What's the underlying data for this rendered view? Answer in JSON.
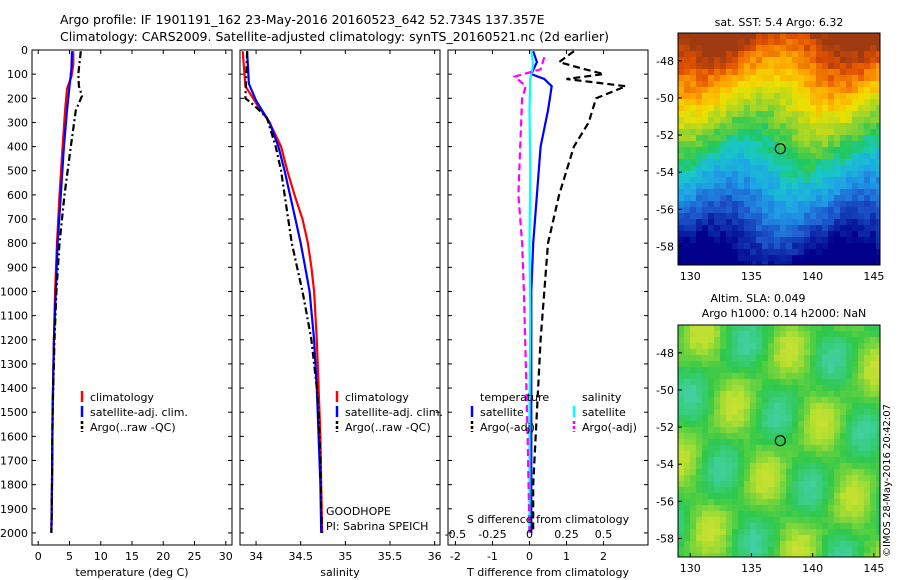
{
  "title_line1": "Argo profile: IF 1901191_162 23-May-2016 20160523_642 52.734S 137.357E",
  "title_line2": "Climatology: CARS2009. Satellite-adjusted climatology: synTS_20160521.nc (2d earlier)",
  "credit": "GOODHOPE",
  "pi": "PI: Sabrina SPEICH",
  "imos_stamp": "©IMOS 28-May-2016 20:42:07",
  "colors": {
    "climatology": "#ff0000",
    "satellite": "#0000ff",
    "argo": "#000000",
    "s_sat": "#00ffff",
    "s_argo": "#ff00ff"
  },
  "chart_data": [
    {
      "type": "line",
      "id": "temperature",
      "xlabel": "temperature (deg C)",
      "ylabel": "",
      "xlim": [
        -1,
        31
      ],
      "ylim": [
        2050,
        0
      ],
      "y_reversed": true,
      "xticks": [
        0,
        5,
        10,
        15,
        20,
        25,
        30
      ],
      "yticks": [
        0,
        100,
        200,
        300,
        400,
        500,
        600,
        700,
        800,
        900,
        1000,
        1100,
        1200,
        1300,
        1400,
        1500,
        1600,
        1700,
        1800,
        1900,
        2000
      ],
      "legend": [
        "climatology",
        "satellite-adj. clim.",
        "Argo(..raw -QC)"
      ],
      "series": [
        {
          "name": "climatology",
          "style": "solid",
          "color": "#ff0000",
          "points": [
            [
              5.6,
              5
            ],
            [
              5.6,
              60
            ],
            [
              5.3,
              110
            ],
            [
              4.6,
              160
            ],
            [
              4.3,
              250
            ],
            [
              3.9,
              400
            ],
            [
              3.4,
              600
            ],
            [
              3.0,
              800
            ],
            [
              2.7,
              1000
            ],
            [
              2.5,
              1200
            ],
            [
              2.3,
              1500
            ],
            [
              2.2,
              1800
            ],
            [
              2.1,
              2000
            ]
          ]
        },
        {
          "name": "satellite-adj. clim.",
          "style": "solid",
          "color": "#0000ff",
          "points": [
            [
              5.4,
              5
            ],
            [
              5.3,
              80
            ],
            [
              5.0,
              150
            ],
            [
              4.6,
              250
            ],
            [
              4.1,
              400
            ],
            [
              3.6,
              600
            ],
            [
              3.1,
              800
            ],
            [
              2.8,
              1000
            ],
            [
              2.5,
              1200
            ],
            [
              2.3,
              1500
            ],
            [
              2.2,
              1800
            ],
            [
              2.1,
              2000
            ]
          ]
        },
        {
          "name": "Argo(..raw -QC)",
          "style": "dashdot",
          "color": "#000000",
          "points": [
            [
              6.8,
              5
            ],
            [
              6.4,
              100
            ],
            [
              6.5,
              150
            ],
            [
              7.0,
              190
            ],
            [
              6.0,
              250
            ],
            [
              5.2,
              400
            ],
            [
              4.2,
              600
            ],
            [
              3.4,
              800
            ],
            [
              2.9,
              1000
            ],
            [
              2.6,
              1200
            ],
            [
              2.3,
              1500
            ],
            [
              2.2,
              1800
            ],
            [
              2.1,
              2000
            ]
          ]
        }
      ]
    },
    {
      "type": "line",
      "id": "salinity",
      "xlabel": "salinity",
      "ylabel": "",
      "xlim": [
        33.82,
        36.06
      ],
      "ylim": [
        2050,
        0
      ],
      "y_reversed": true,
      "xticks": [
        34,
        34.5,
        35,
        35.5,
        36
      ],
      "legend": [
        "climatology",
        "satellite-adj. clim.",
        "Argo(..raw -QC)"
      ],
      "series": [
        {
          "name": "climatology",
          "style": "solid",
          "color": "#ff0000",
          "points": [
            [
              33.85,
              5
            ],
            [
              33.88,
              150
            ],
            [
              34.0,
              220
            ],
            [
              34.15,
              300
            ],
            [
              34.28,
              400
            ],
            [
              34.35,
              500
            ],
            [
              34.43,
              600
            ],
            [
              34.52,
              700
            ],
            [
              34.58,
              800
            ],
            [
              34.62,
              900
            ],
            [
              34.65,
              1000
            ],
            [
              34.68,
              1200
            ],
            [
              34.7,
              1400
            ],
            [
              34.72,
              1600
            ],
            [
              34.73,
              1800
            ],
            [
              34.74,
              2000
            ]
          ]
        },
        {
          "name": "satellite-adj. clim.",
          "style": "solid",
          "color": "#0000ff",
          "points": [
            [
              33.9,
              5
            ],
            [
              33.92,
              140
            ],
            [
              34.0,
              210
            ],
            [
              34.15,
              300
            ],
            [
              34.25,
              400
            ],
            [
              34.32,
              500
            ],
            [
              34.38,
              600
            ],
            [
              34.44,
              700
            ],
            [
              34.5,
              800
            ],
            [
              34.55,
              900
            ],
            [
              34.6,
              1000
            ],
            [
              34.65,
              1200
            ],
            [
              34.68,
              1400
            ],
            [
              34.7,
              1600
            ],
            [
              34.72,
              1800
            ],
            [
              34.73,
              2000
            ]
          ]
        },
        {
          "name": "Argo(..raw -QC)",
          "style": "dashdot",
          "color": "#000000",
          "points": [
            [
              33.9,
              5
            ],
            [
              33.88,
              200
            ],
            [
              33.98,
              230
            ],
            [
              34.12,
              280
            ],
            [
              34.22,
              400
            ],
            [
              34.28,
              500
            ],
            [
              34.32,
              600
            ],
            [
              34.36,
              700
            ],
            [
              34.4,
              800
            ],
            [
              34.46,
              900
            ],
            [
              34.52,
              1000
            ],
            [
              34.57,
              1100
            ],
            [
              34.62,
              1200
            ],
            [
              34.65,
              1300
            ],
            [
              34.68,
              1400
            ],
            [
              34.7,
              1500
            ],
            [
              34.72,
              1700
            ],
            [
              34.73,
              1900
            ],
            [
              34.74,
              2000
            ]
          ]
        }
      ]
    },
    {
      "type": "line",
      "id": "difference",
      "xlabel": "T difference from climatology",
      "xlabel_top": "S difference from climatology",
      "xlim": [
        -2.2,
        3.2
      ],
      "ylim": [
        2050,
        0
      ],
      "y_reversed": true,
      "xticks": [
        -2,
        -1,
        0,
        1,
        2
      ],
      "top_ticks": [
        "-0.5",
        "-0.25",
        "0",
        "0.25",
        "0.5"
      ],
      "top_tick_values": [
        -0.5,
        -0.25,
        0,
        0.25,
        0.5
      ],
      "legend_title_t": "temperature",
      "legend_title_s": "salinity",
      "legend": [
        {
          "label": "satellite",
          "color": "#0000ff",
          "style": "solid"
        },
        {
          "label": "Argo(-adj)",
          "color": "#000000",
          "style": "dash"
        },
        {
          "label": "satellite",
          "color": "#00ffff",
          "style": "solid"
        },
        {
          "label": "Argo(-adj)",
          "color": "#ff00ff",
          "style": "dash"
        }
      ],
      "series": [
        {
          "name": "T satellite",
          "style": "solid",
          "color": "#0000ff",
          "points": [
            [
              0.1,
              5
            ],
            [
              0.2,
              50
            ],
            [
              0.05,
              100
            ],
            [
              0.4,
              120
            ],
            [
              0.6,
              150
            ],
            [
              0.5,
              250
            ],
            [
              0.3,
              400
            ],
            [
              0.2,
              600
            ],
            [
              0.1,
              800
            ],
            [
              0.05,
              1000
            ],
            [
              0.05,
              1500
            ],
            [
              0.05,
              2000
            ]
          ]
        },
        {
          "name": "T Argo(-adj)",
          "style": "dash",
          "color": "#000000",
          "points": [
            [
              1.2,
              5
            ],
            [
              0.8,
              50
            ],
            [
              1.5,
              80
            ],
            [
              2.0,
              100
            ],
            [
              1.0,
              120
            ],
            [
              2.6,
              150
            ],
            [
              1.8,
              200
            ],
            [
              1.6,
              300
            ],
            [
              1.2,
              400
            ],
            [
              0.8,
              600
            ],
            [
              0.5,
              800
            ],
            [
              0.4,
              1000
            ],
            [
              0.3,
              1200
            ],
            [
              0.2,
              1500
            ],
            [
              0.1,
              1800
            ],
            [
              0.1,
              2000
            ]
          ]
        },
        {
          "name": "S satellite",
          "style": "solid",
          "color": "#00ffff",
          "points": [
            [
              0.05,
              5
            ],
            [
              0.1,
              60
            ],
            [
              0.02,
              120
            ],
            [
              0.0,
              250
            ],
            [
              0.02,
              500
            ],
            [
              0.0,
              800
            ],
            [
              0.02,
              1100
            ],
            [
              0.0,
              1500
            ],
            [
              0.0,
              2000
            ]
          ]
        },
        {
          "name": "S Argo(-adj)",
          "style": "dash",
          "color": "#ff00ff",
          "points": [
            [
              0.4,
              30
            ],
            [
              0.3,
              80
            ],
            [
              -0.4,
              110
            ],
            [
              -0.1,
              150
            ],
            [
              -0.2,
              200
            ],
            [
              -0.25,
              400
            ],
            [
              -0.3,
              600
            ],
            [
              -0.2,
              800
            ],
            [
              -0.15,
              1000
            ],
            [
              -0.1,
              1300
            ],
            [
              -0.05,
              1600
            ],
            [
              0.0,
              2000
            ]
          ]
        }
      ]
    },
    {
      "type": "heatmap",
      "id": "sst_map",
      "title": "sat. SST: 5.4  Argo: 6.32",
      "xlim": [
        129,
        145.5
      ],
      "ylim": [
        -59,
        -46.5
      ],
      "xticks": [
        130,
        135,
        140,
        145
      ],
      "yticks": [
        -48,
        -50,
        -52,
        -54,
        -56,
        -58
      ],
      "marker": [
        137.357,
        -52.734
      ]
    },
    {
      "type": "heatmap",
      "id": "sla_map",
      "title": "Altim. SLA: 0.049",
      "subtitle": "Argo h1000: 0.14 h2000: NaN",
      "xlim": [
        129,
        145.5
      ],
      "ylim": [
        -59,
        -46.5
      ],
      "xticks": [
        130,
        135,
        140,
        145
      ],
      "yticks": [
        -48,
        -50,
        -52,
        -54,
        -56,
        -58
      ],
      "marker": [
        137.357,
        -52.734
      ]
    }
  ]
}
